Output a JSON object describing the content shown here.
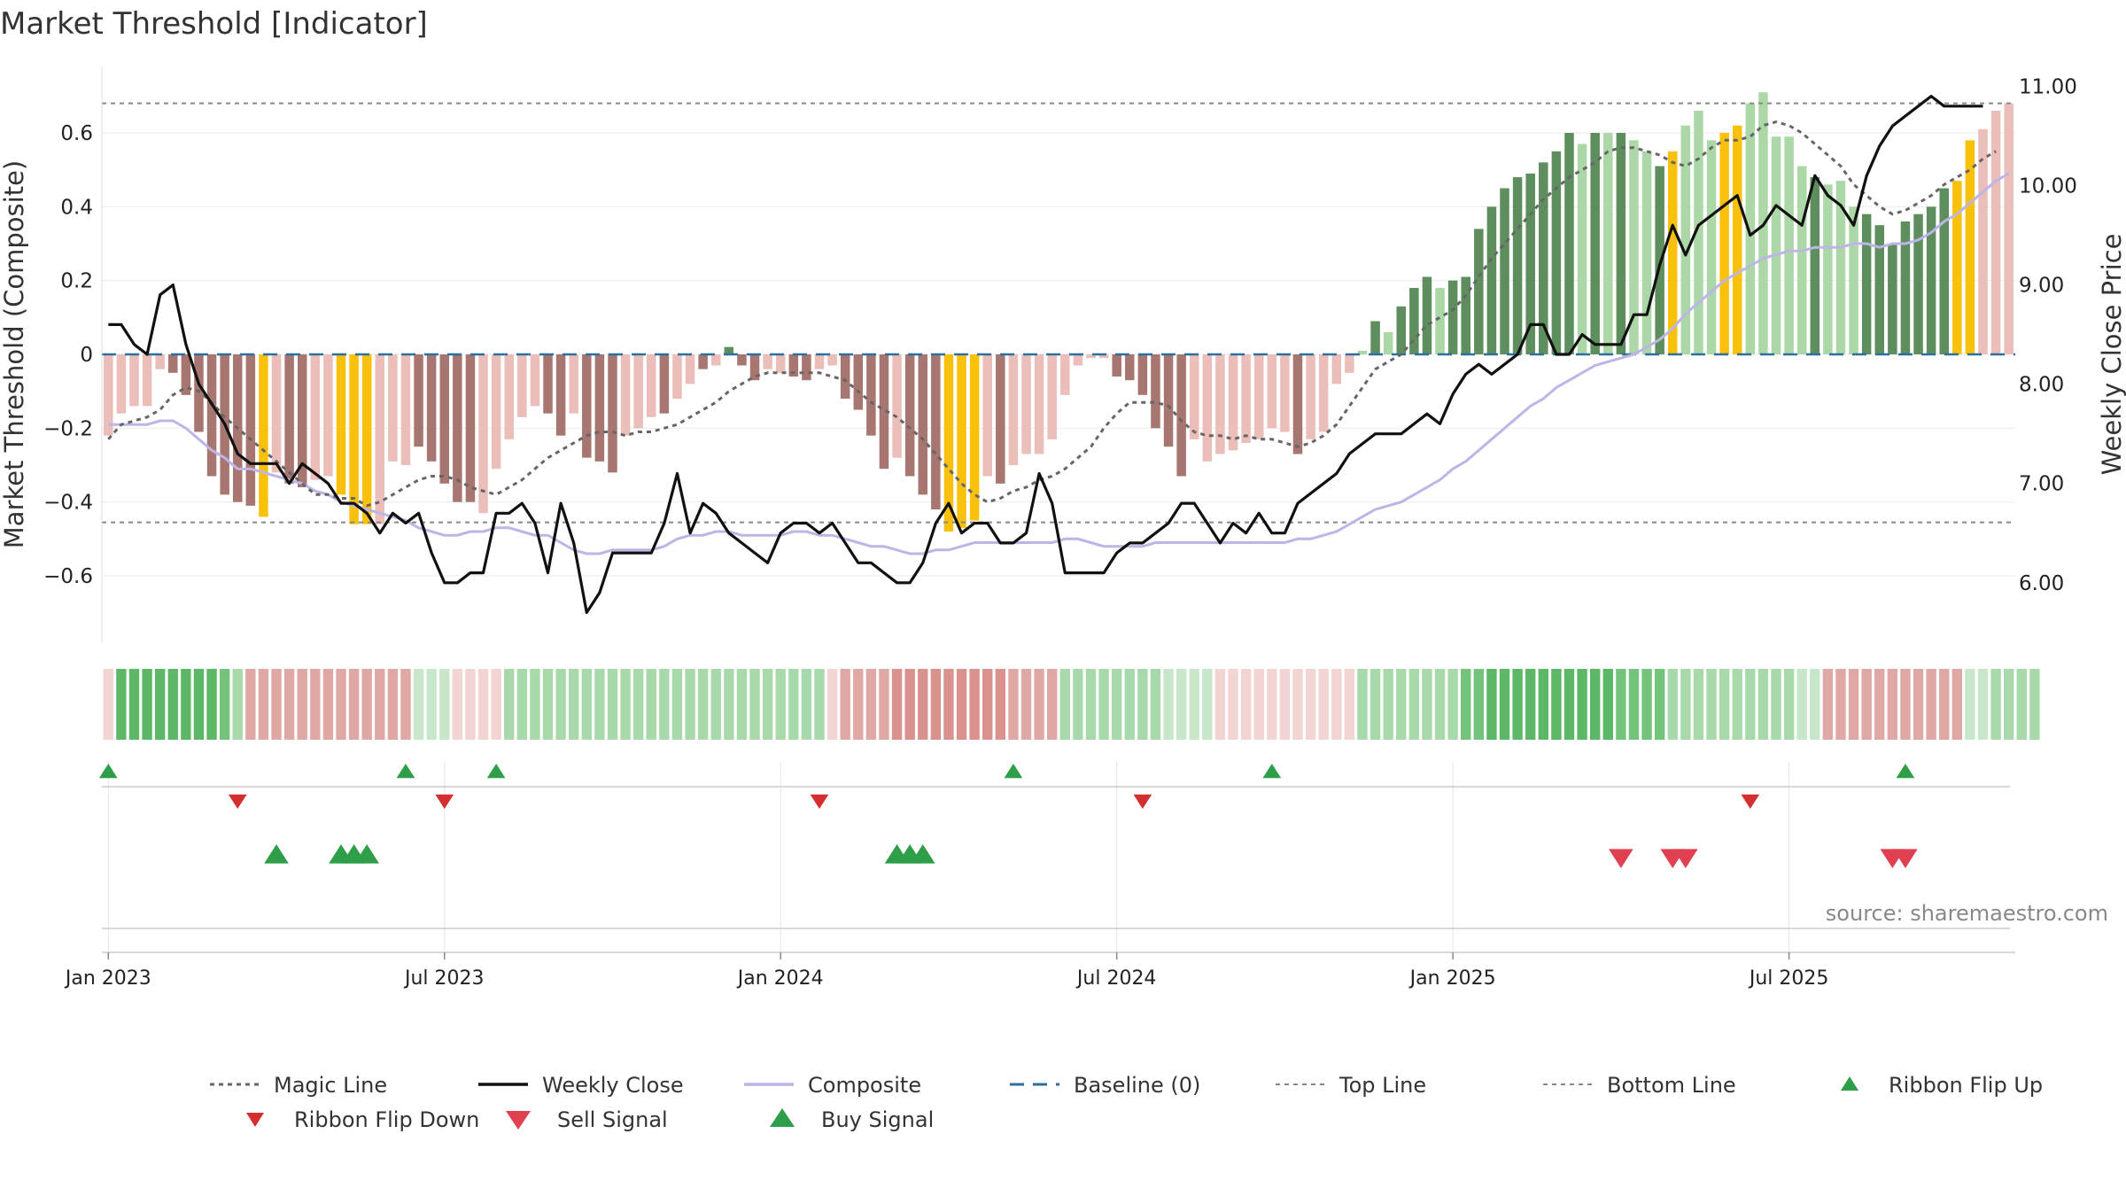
{
  "chart_data": {
    "type": "bar",
    "title": "Market Threshold [Indicator]",
    "ylabel": "Market Threshold (Composite)",
    "y2label": "Weekly Close Price",
    "source": "source: sharemaestro.com",
    "ylim": [
      -0.78,
      0.78
    ],
    "y2lim": [
      5.4,
      11.2
    ],
    "yticks": [
      -0.6,
      -0.4,
      -0.2,
      0,
      0.2,
      0.4,
      0.6
    ],
    "ytick_labels": [
      "−0.6",
      "−0.4",
      "−0.2",
      "0",
      "0.2",
      "0.4",
      "0.6"
    ],
    "y2ticks": [
      6,
      7,
      8,
      9,
      10,
      11
    ],
    "y2tick_labels": [
      "6.00",
      "7.00",
      "8.00",
      "9.00",
      "10.00",
      "11.00"
    ],
    "xticks": [
      {
        "label": "Jan 2023",
        "week": 1
      },
      {
        "label": "Jul 2023",
        "week": 27
      },
      {
        "label": "Jan 2024",
        "week": 53
      },
      {
        "label": "Jul 2024",
        "week": 79
      },
      {
        "label": "Jan 2025",
        "week": 105
      },
      {
        "label": "Jul 2025",
        "week": 131
      }
    ],
    "top_line": 0.68,
    "bottom_line": -0.455,
    "composite_bars": [
      -0.22,
      -0.16,
      -0.14,
      -0.14,
      -0.04,
      -0.05,
      -0.11,
      -0.21,
      -0.33,
      -0.38,
      -0.4,
      -0.41,
      -0.44,
      -0.32,
      -0.35,
      -0.36,
      -0.34,
      -0.33,
      -0.38,
      -0.46,
      -0.46,
      -0.46,
      -0.29,
      -0.3,
      -0.25,
      -0.29,
      -0.35,
      -0.4,
      -0.4,
      -0.43,
      -0.31,
      -0.23,
      -0.17,
      -0.14,
      -0.16,
      -0.22,
      -0.16,
      -0.28,
      -0.29,
      -0.32,
      -0.22,
      -0.2,
      -0.17,
      -0.16,
      -0.12,
      -0.08,
      -0.04,
      -0.03,
      0.02,
      -0.03,
      -0.07,
      -0.04,
      -0.05,
      -0.06,
      -0.07,
      -0.04,
      -0.03,
      -0.12,
      -0.15,
      -0.22,
      -0.31,
      -0.28,
      -0.33,
      -0.38,
      -0.42,
      -0.48,
      -0.47,
      -0.45,
      -0.33,
      -0.35,
      -0.3,
      -0.27,
      -0.27,
      -0.23,
      -0.11,
      -0.03,
      -0.01,
      -0.01,
      -0.06,
      -0.07,
      -0.11,
      -0.2,
      -0.25,
      -0.33,
      -0.23,
      -0.29,
      -0.27,
      -0.26,
      -0.24,
      -0.23,
      -0.2,
      -0.21,
      -0.27,
      -0.23,
      -0.21,
      -0.08,
      -0.05,
      0.01,
      0.09,
      0.06,
      0.13,
      0.18,
      0.21,
      0.18,
      0.2,
      0.21,
      0.34,
      0.4,
      0.45,
      0.48,
      0.49,
      0.52,
      0.55,
      0.6,
      0.57,
      0.6,
      0.6,
      0.6,
      0.58,
      0.55,
      0.51,
      0.55,
      0.62,
      0.66,
      0.58,
      0.6,
      0.62,
      0.68,
      0.71,
      0.59,
      0.59,
      0.51,
      0.48,
      0.46,
      0.47,
      0.4,
      0.38,
      0.35,
      0.3,
      0.36,
      0.38,
      0.4,
      0.45,
      0.47,
      0.58,
      0.61,
      0.66,
      0.68
    ],
    "bar_classes": [
      "lr",
      "lr",
      "lr",
      "lr",
      "lr",
      "dr",
      "dr",
      "dr",
      "dr",
      "dr",
      "dr",
      "dr",
      "y",
      "lr",
      "dr",
      "dr",
      "lr",
      "lr",
      "y",
      "y",
      "y",
      "lr",
      "lr",
      "lr",
      "dr",
      "dr",
      "dr",
      "dr",
      "dr",
      "lr",
      "lr",
      "lr",
      "lr",
      "lr",
      "dr",
      "dr",
      "lr",
      "dr",
      "dr",
      "dr",
      "lr",
      "lr",
      "lr",
      "dr",
      "lr",
      "lr",
      "dr",
      "lr",
      "dg",
      "dr",
      "dr",
      "lr",
      "lr",
      "dr",
      "dr",
      "lr",
      "lr",
      "dr",
      "dr",
      "dr",
      "dr",
      "lr",
      "dr",
      "dr",
      "dr",
      "y",
      "y",
      "y",
      "lr",
      "dr",
      "lr",
      "lr",
      "lr",
      "lr",
      "lr",
      "lr",
      "lr",
      "lr",
      "dr",
      "dr",
      "dr",
      "dr",
      "dr",
      "dr",
      "lr",
      "lr",
      "lr",
      "lr",
      "lr",
      "lr",
      "lr",
      "lr",
      "dr",
      "lr",
      "lr",
      "lr",
      "lr",
      "lg",
      "dg",
      "lg",
      "dg",
      "dg",
      "dg",
      "lg",
      "dg",
      "dg",
      "dg",
      "dg",
      "dg",
      "dg",
      "dg",
      "dg",
      "dg",
      "dg",
      "lg",
      "dg",
      "lg",
      "dg",
      "lg",
      "lg",
      "dg",
      "y",
      "lg",
      "lg",
      "lg",
      "y",
      "y",
      "lg",
      "lg",
      "lg",
      "lg",
      "lg",
      "dg",
      "lg",
      "lg",
      "lg",
      "dg",
      "dg",
      "dg",
      "dg",
      "dg",
      "dg",
      "dg",
      "y",
      "y"
    ],
    "magic_line": [
      -0.23,
      -0.19,
      -0.18,
      -0.17,
      -0.15,
      -0.11,
      -0.09,
      -0.1,
      -0.13,
      -0.17,
      -0.2,
      -0.23,
      -0.26,
      -0.29,
      -0.32,
      -0.35,
      -0.38,
      -0.38,
      -0.39,
      -0.39,
      -0.41,
      -0.4,
      -0.38,
      -0.36,
      -0.34,
      -0.33,
      -0.33,
      -0.34,
      -0.36,
      -0.37,
      -0.38,
      -0.36,
      -0.34,
      -0.31,
      -0.28,
      -0.26,
      -0.24,
      -0.22,
      -0.21,
      -0.21,
      -0.22,
      -0.21,
      -0.21,
      -0.2,
      -0.19,
      -0.17,
      -0.15,
      -0.13,
      -0.1,
      -0.08,
      -0.06,
      -0.05,
      -0.05,
      -0.05,
      -0.05,
      -0.05,
      -0.06,
      -0.07,
      -0.1,
      -0.13,
      -0.15,
      -0.17,
      -0.2,
      -0.23,
      -0.27,
      -0.31,
      -0.35,
      -0.38,
      -0.4,
      -0.39,
      -0.37,
      -0.36,
      -0.34,
      -0.33,
      -0.31,
      -0.28,
      -0.25,
      -0.2,
      -0.16,
      -0.13,
      -0.13,
      -0.13,
      -0.14,
      -0.18,
      -0.21,
      -0.22,
      -0.22,
      -0.23,
      -0.22,
      -0.23,
      -0.23,
      -0.24,
      -0.25,
      -0.24,
      -0.22,
      -0.19,
      -0.14,
      -0.09,
      -0.04,
      -0.02,
      0.0,
      0.04,
      0.08,
      0.1,
      0.12,
      0.16,
      0.21,
      0.26,
      0.3,
      0.34,
      0.38,
      0.42,
      0.45,
      0.48,
      0.5,
      0.52,
      0.55,
      0.56,
      0.56,
      0.55,
      0.54,
      0.52,
      0.51,
      0.53,
      0.56,
      0.58,
      0.58,
      0.59,
      0.62,
      0.63,
      0.62,
      0.6,
      0.57,
      0.54,
      0.51,
      0.46,
      0.43,
      0.4,
      0.38,
      0.39,
      0.41,
      0.43,
      0.46,
      0.48,
      0.5,
      0.53,
      0.55
    ],
    "composite_line": [
      -0.19,
      -0.19,
      -0.19,
      -0.19,
      -0.18,
      -0.18,
      -0.2,
      -0.23,
      -0.26,
      -0.28,
      -0.31,
      -0.31,
      -0.32,
      -0.33,
      -0.34,
      -0.35,
      -0.37,
      -0.38,
      -0.4,
      -0.41,
      -0.42,
      -0.43,
      -0.44,
      -0.45,
      -0.47,
      -0.48,
      -0.49,
      -0.49,
      -0.48,
      -0.48,
      -0.47,
      -0.47,
      -0.48,
      -0.49,
      -0.49,
      -0.51,
      -0.53,
      -0.54,
      -0.54,
      -0.53,
      -0.53,
      -0.53,
      -0.53,
      -0.52,
      -0.5,
      -0.49,
      -0.49,
      -0.48,
      -0.48,
      -0.49,
      -0.49,
      -0.49,
      -0.49,
      -0.48,
      -0.48,
      -0.49,
      -0.49,
      -0.5,
      -0.51,
      -0.52,
      -0.52,
      -0.53,
      -0.54,
      -0.54,
      -0.53,
      -0.53,
      -0.52,
      -0.51,
      -0.51,
      -0.51,
      -0.51,
      -0.51,
      -0.51,
      -0.51,
      -0.5,
      -0.5,
      -0.51,
      -0.52,
      -0.52,
      -0.52,
      -0.52,
      -0.51,
      -0.51,
      -0.51,
      -0.51,
      -0.51,
      -0.51,
      -0.51,
      -0.51,
      -0.51,
      -0.51,
      -0.51,
      -0.5,
      -0.5,
      -0.49,
      -0.48,
      -0.46,
      -0.44,
      -0.42,
      -0.41,
      -0.4,
      -0.38,
      -0.36,
      -0.34,
      -0.31,
      -0.29,
      -0.26,
      -0.23,
      -0.2,
      -0.17,
      -0.14,
      -0.12,
      -0.09,
      -0.07,
      -0.05,
      -0.03,
      -0.02,
      -0.01,
      0.0,
      0.02,
      0.04,
      0.07,
      0.11,
      0.14,
      0.17,
      0.2,
      0.22,
      0.24,
      0.26,
      0.27,
      0.28,
      0.28,
      0.29,
      0.29,
      0.29,
      0.3,
      0.3,
      0.29,
      0.3,
      0.3,
      0.31,
      0.33,
      0.36,
      0.38,
      0.41,
      0.44,
      0.47,
      0.49
    ],
    "weekly_close": [
      8.6,
      8.6,
      8.4,
      8.3,
      8.9,
      9.0,
      8.4,
      8.0,
      7.8,
      7.6,
      7.3,
      7.2,
      7.2,
      7.2,
      7.0,
      7.2,
      7.1,
      7.0,
      6.8,
      6.8,
      6.7,
      6.5,
      6.7,
      6.6,
      6.7,
      6.3,
      6.0,
      6.0,
      6.1,
      6.1,
      6.7,
      6.7,
      6.8,
      6.6,
      6.1,
      6.8,
      6.4,
      5.7,
      5.9,
      6.3,
      6.3,
      6.3,
      6.3,
      6.6,
      7.1,
      6.5,
      6.8,
      6.7,
      6.5,
      6.4,
      6.3,
      6.2,
      6.5,
      6.6,
      6.6,
      6.5,
      6.6,
      6.4,
      6.2,
      6.2,
      6.1,
      6.0,
      6.0,
      6.2,
      6.6,
      6.8,
      6.5,
      6.6,
      6.6,
      6.4,
      6.4,
      6.5,
      7.1,
      6.8,
      6.1,
      6.1,
      6.1,
      6.1,
      6.3,
      6.4,
      6.4,
      6.5,
      6.6,
      6.8,
      6.8,
      6.6,
      6.4,
      6.6,
      6.5,
      6.7,
      6.5,
      6.5,
      6.8,
      6.9,
      7.0,
      7.1,
      7.3,
      7.4,
      7.5,
      7.5,
      7.5,
      7.6,
      7.7,
      7.6,
      7.9,
      8.1,
      8.2,
      8.1,
      8.2,
      8.3,
      8.6,
      8.6,
      8.3,
      8.3,
      8.5,
      8.4,
      8.4,
      8.4,
      8.7,
      8.7,
      9.2,
      9.6,
      9.3,
      9.6,
      9.7,
      9.8,
      9.9,
      9.5,
      9.6,
      9.8,
      9.7,
      9.6,
      10.1,
      9.9,
      9.8,
      9.6,
      10.1,
      10.4,
      10.6,
      10.7,
      10.8,
      10.9,
      10.8,
      10.8,
      10.8,
      10.8
    ],
    "ribbon_colors": [
      "#f2d4d2",
      "#5cb866",
      "#5cb866",
      "#5cb866",
      "#5cb866",
      "#5cb866",
      "#5cb866",
      "#5cb866",
      "#5cb866",
      "#73c37b",
      "#a8d9ab",
      "#e0a8a4",
      "#e0a8a4",
      "#e0a8a4",
      "#e0a8a4",
      "#e0a8a4",
      "#e0a8a4",
      "#e0a8a4",
      "#e0a8a4",
      "#e0a8a4",
      "#e0a8a4",
      "#e0a8a4",
      "#e0a8a4",
      "#e0a8a4",
      "#c8e6ca",
      "#c8e6ca",
      "#c8e6ca",
      "#f2d4d2",
      "#f2d4d2",
      "#f2d4d2",
      "#f2d4d2",
      "#a8d9ab",
      "#a8d9ab",
      "#a8d9ab",
      "#a8d9ab",
      "#a8d9ab",
      "#a8d9ab",
      "#a8d9ab",
      "#a8d9ab",
      "#a8d9ab",
      "#a8d9ab",
      "#a8d9ab",
      "#a8d9ab",
      "#a8d9ab",
      "#a8d9ab",
      "#a8d9ab",
      "#a8d9ab",
      "#a8d9ab",
      "#a8d9ab",
      "#a8d9ab",
      "#a8d9ab",
      "#a8d9ab",
      "#a8d9ab",
      "#a8d9ab",
      "#a8d9ab",
      "#a8d9ab",
      "#f2d4d2",
      "#e0a8a4",
      "#e0a8a4",
      "#e0a8a4",
      "#e0a8a4",
      "#d9928d",
      "#d9928d",
      "#d9928d",
      "#d9928d",
      "#d9928d",
      "#d9928d",
      "#d9928d",
      "#d9928d",
      "#d9928d",
      "#e0a8a4",
      "#e0a8a4",
      "#e0a8a4",
      "#e0a8a4",
      "#a8d9ab",
      "#a8d9ab",
      "#a8d9ab",
      "#a8d9ab",
      "#a8d9ab",
      "#a8d9ab",
      "#a8d9ab",
      "#a8d9ab",
      "#c8e6ca",
      "#c8e6ca",
      "#c8e6ca",
      "#c8e6ca",
      "#f2d4d2",
      "#f2d4d2",
      "#f2d4d2",
      "#f2d4d2",
      "#f2d4d2",
      "#f2d4d2",
      "#f2d4d2",
      "#f2d4d2",
      "#f2d4d2",
      "#f2d4d2",
      "#f2d4d2",
      "#a8d9ab",
      "#a8d9ab",
      "#a8d9ab",
      "#a8d9ab",
      "#a8d9ab",
      "#a8d9ab",
      "#a8d9ab",
      "#a8d9ab",
      "#73c37b",
      "#73c37b",
      "#5cb866",
      "#5cb866",
      "#5cb866",
      "#5cb866",
      "#5cb866",
      "#5cb866",
      "#5cb866",
      "#5cb866",
      "#5cb866",
      "#5cb866",
      "#73c37b",
      "#73c37b",
      "#73c37b",
      "#73c37b",
      "#a8d9ab",
      "#a8d9ab",
      "#a8d9ab",
      "#a8d9ab",
      "#a8d9ab",
      "#a8d9ab",
      "#a8d9ab",
      "#a8d9ab",
      "#a8d9ab",
      "#a8d9ab",
      "#c8e6ca",
      "#c8e6ca",
      "#e0a8a4",
      "#e0a8a4",
      "#e0a8a4",
      "#e0a8a4",
      "#e0a8a4",
      "#e0a8a4",
      "#e0a8a4",
      "#e0a8a4",
      "#e0a8a4",
      "#e0a8a4",
      "#e0a8a4",
      "#c8e6ca",
      "#c8e6ca",
      "#a8d9ab",
      "#a8d9ab",
      "#a8d9ab",
      "#a8d9ab"
    ],
    "ribbon_flip_up_weeks": [
      1,
      24,
      31,
      71,
      91,
      140
    ],
    "ribbon_flip_down_weeks": [
      11,
      27,
      56,
      81,
      128
    ],
    "buy_signal_weeks": [
      14,
      19,
      20,
      21,
      62,
      63,
      64
    ],
    "sell_signal_weeks": [
      118,
      122,
      123,
      139,
      140
    ],
    "legend": [
      {
        "label": "Magic Line",
        "style": "dotted-gray"
      },
      {
        "label": "Weekly Close",
        "style": "solid-black"
      },
      {
        "label": "Composite",
        "style": "solid-lavender"
      },
      {
        "label": "Baseline (0)",
        "style": "dashed-blue"
      },
      {
        "label": "Top Line",
        "style": "dotted-gray-thin"
      },
      {
        "label": "Bottom Line",
        "style": "dotted-gray-thin"
      },
      {
        "label": "Ribbon Flip Up",
        "style": "triangle-up-green"
      },
      {
        "label": "Ribbon Flip Down",
        "style": "triangle-down-red"
      },
      {
        "label": "Sell Signal",
        "style": "triangle-down-red-large"
      },
      {
        "label": "Buy Signal",
        "style": "triangle-up-green-large"
      }
    ],
    "colors": {
      "dark_red": "#a87670",
      "light_red": "#ebbeb9",
      "dark_green": "#5e8e5e",
      "light_green": "#acd7a6",
      "yellow": "#f9c10c",
      "weekly_close": "#111111",
      "composite": "#bdb5e6",
      "magic_line": "#666666",
      "baseline": "#2e6e9e",
      "flip_up": "#2e9e48",
      "flip_down": "#d32f2f",
      "sell": "#e04050",
      "buy": "#2e9e48"
    }
  }
}
